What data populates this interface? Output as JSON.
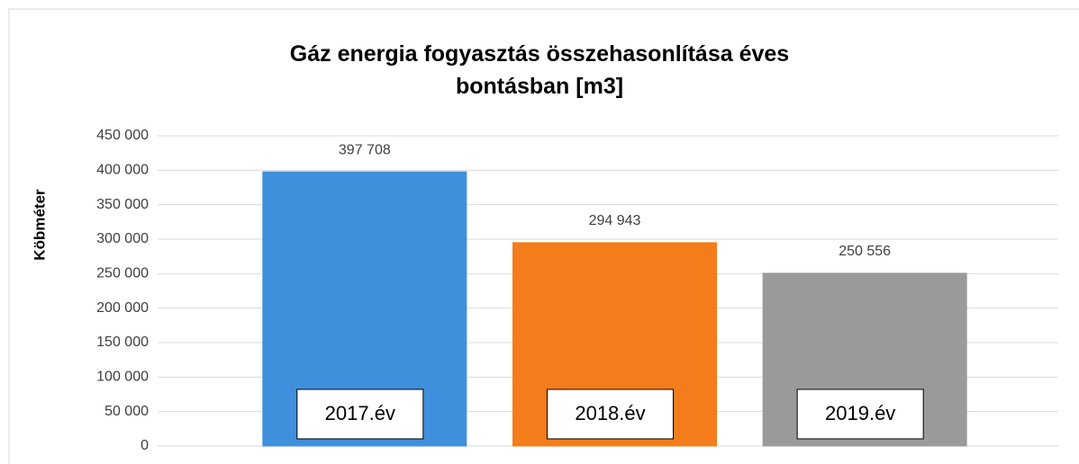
{
  "chart_data": {
    "type": "bar",
    "title": "Gáz energia fogyasztás összehasonlítása éves bontásban [m3]",
    "ylabel": "Köbméter",
    "categories": [
      "2017.év",
      "2018.év",
      "2019.év"
    ],
    "values": [
      397708,
      294943,
      250556
    ],
    "value_labels": [
      "397 708",
      "294 943",
      "250 556"
    ],
    "colors": [
      "#3f8fdc",
      "#f47c1a",
      "#9a9a9a"
    ],
    "ylim": [
      0,
      450000
    ],
    "yticks": [
      0,
      {
        "value": 50000,
        "label": "50 000"
      },
      {
        "value": 100000,
        "label": "100 000"
      },
      {
        "value": 150000,
        "label": "150 000"
      },
      {
        "value": 200000,
        "label": "200 000"
      },
      {
        "value": 250000,
        "label": "250 000"
      },
      {
        "value": 300000,
        "label": "300 000"
      },
      {
        "value": 350000,
        "label": "350 000"
      },
      {
        "value": 400000,
        "label": "400 000"
      },
      {
        "value": 450000,
        "label": "450 000"
      }
    ],
    "grid": true
  }
}
